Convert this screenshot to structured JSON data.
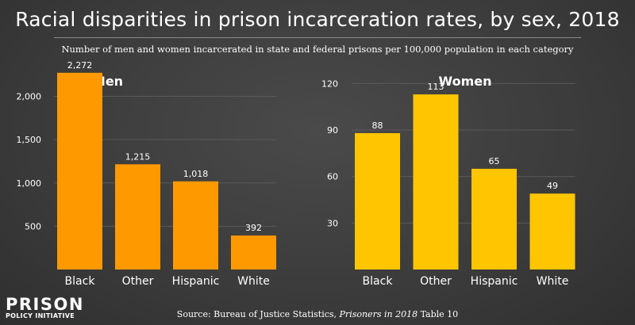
{
  "header": {
    "title": "Racial disparities in prison incarceration rates, by sex, 2018",
    "subtitle": "Number of men and women incarcerated in state and federal prisons per 100,000 population in each category"
  },
  "footer": {
    "source_prefix": "Source: Bureau of Justice Statistics, ",
    "source_italic": "Prisoners in 2018",
    "source_suffix": " Table 10"
  },
  "logo": {
    "main": "PRISON",
    "sub": "POLICY INITIATIVE"
  },
  "colors": {
    "men_bar": "#ff9900",
    "women_bar": "#ffc600",
    "background": "#3b3b3b"
  },
  "chart_data": [
    {
      "type": "bar",
      "title": "Men",
      "categories": [
        "Black",
        "Other",
        "Hispanic",
        "White"
      ],
      "values": [
        2272,
        1215,
        1018,
        392
      ],
      "value_labels": [
        "2,272",
        "1,215",
        "1,018",
        "392"
      ],
      "yticks": [
        500,
        1000,
        1500,
        2000
      ],
      "ytick_labels": [
        "500",
        "1,000",
        "1,500",
        "2,000"
      ],
      "ylim": [
        0,
        2380
      ],
      "grid": true
    },
    {
      "type": "bar",
      "title": "Women",
      "categories": [
        "Black",
        "Other",
        "Hispanic",
        "White"
      ],
      "values": [
        88,
        113,
        65,
        49
      ],
      "value_labels": [
        "88",
        "113",
        "65",
        "49"
      ],
      "yticks": [
        30,
        60,
        90,
        120
      ],
      "ytick_labels": [
        "30",
        "60",
        "90",
        "120"
      ],
      "ylim": [
        0,
        133
      ],
      "grid": true
    }
  ]
}
